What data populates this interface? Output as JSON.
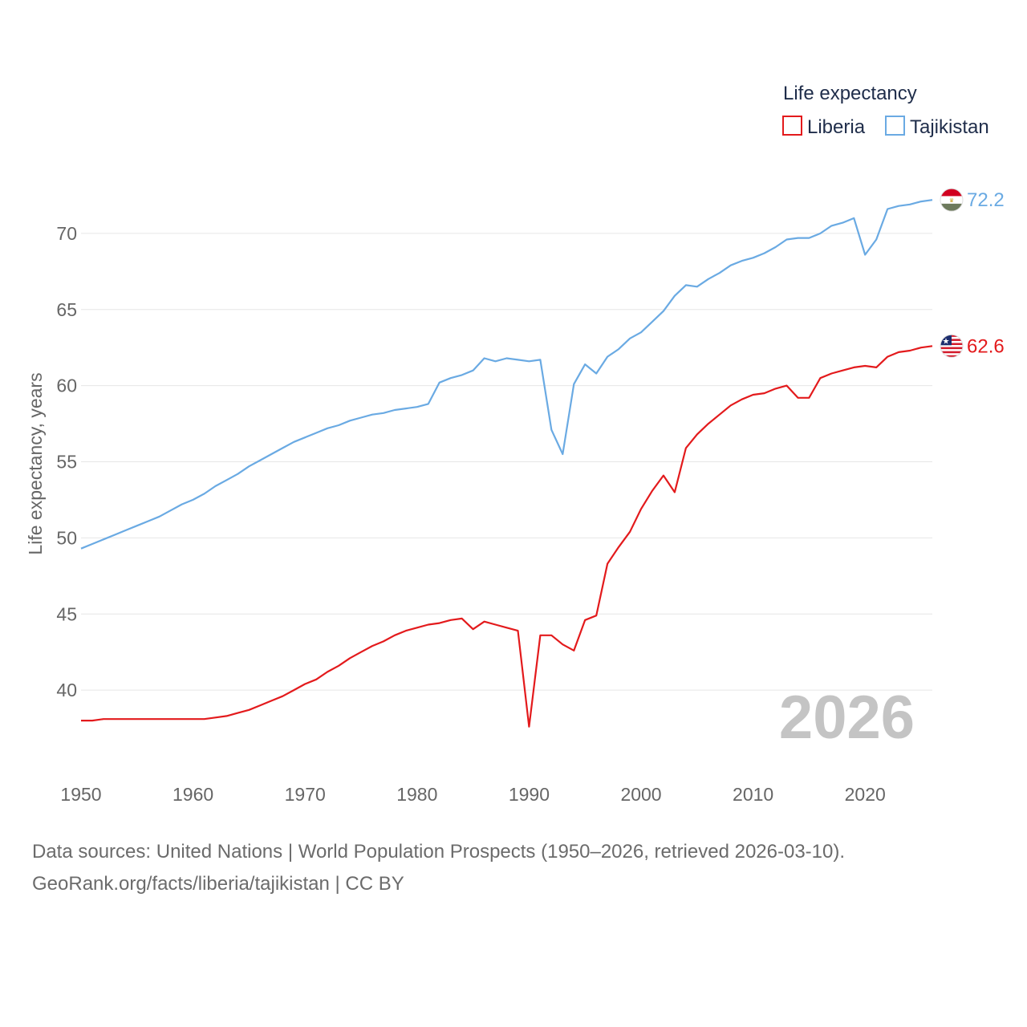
{
  "chart_data": {
    "type": "line",
    "legend_title": "Life expectancy",
    "ylabel": "Life expectancy, years",
    "xlabel": "",
    "year_watermark": "2026",
    "xlim": [
      1950,
      2026
    ],
    "ylim": [
      35,
      74
    ],
    "x_ticks": [
      1950,
      1960,
      1970,
      1980,
      1990,
      2000,
      2010,
      2020
    ],
    "y_ticks": [
      40,
      45,
      50,
      55,
      60,
      65,
      70
    ],
    "legend_position": "top-right",
    "x": [
      1950,
      1951,
      1952,
      1953,
      1954,
      1955,
      1956,
      1957,
      1958,
      1959,
      1960,
      1961,
      1962,
      1963,
      1964,
      1965,
      1966,
      1967,
      1968,
      1969,
      1970,
      1971,
      1972,
      1973,
      1974,
      1975,
      1976,
      1977,
      1978,
      1979,
      1980,
      1981,
      1982,
      1983,
      1984,
      1985,
      1986,
      1987,
      1988,
      1989,
      1990,
      1991,
      1992,
      1993,
      1994,
      1995,
      1996,
      1997,
      1998,
      1999,
      2000,
      2001,
      2002,
      2003,
      2004,
      2005,
      2006,
      2007,
      2008,
      2009,
      2010,
      2011,
      2012,
      2013,
      2014,
      2015,
      2016,
      2017,
      2018,
      2019,
      2020,
      2021,
      2022,
      2023,
      2024,
      2025,
      2026
    ],
    "series": [
      {
        "name": "Liberia",
        "color": "#e31a1c",
        "end_label": "62.6",
        "flag": "liberia-flag",
        "values": [
          38.0,
          38.0,
          38.1,
          38.1,
          38.1,
          38.1,
          38.1,
          38.1,
          38.1,
          38.1,
          38.1,
          38.1,
          38.2,
          38.3,
          38.5,
          38.7,
          39.0,
          39.3,
          39.6,
          40.0,
          40.4,
          40.7,
          41.2,
          41.6,
          42.1,
          42.5,
          42.9,
          43.2,
          43.6,
          43.9,
          44.1,
          44.3,
          44.4,
          44.6,
          44.7,
          44.0,
          44.5,
          44.3,
          44.1,
          43.9,
          37.6,
          43.6,
          43.6,
          43.0,
          42.6,
          44.6,
          44.9,
          48.3,
          49.4,
          50.4,
          51.9,
          53.1,
          54.1,
          53.0,
          55.9,
          56.8,
          57.5,
          58.1,
          58.7,
          59.1,
          59.4,
          59.5,
          59.8,
          60.0,
          59.2,
          59.2,
          60.5,
          60.8,
          61.0,
          61.2,
          61.3,
          61.2,
          61.9,
          62.2,
          62.3,
          62.5,
          62.6
        ]
      },
      {
        "name": "Tajikistan",
        "color": "#6aaae3",
        "end_label": "72.2",
        "flag": "tajikistan-flag",
        "values": [
          49.3,
          49.6,
          49.9,
          50.2,
          50.5,
          50.8,
          51.1,
          51.4,
          51.8,
          52.2,
          52.5,
          52.9,
          53.4,
          53.8,
          54.2,
          54.7,
          55.1,
          55.5,
          55.9,
          56.3,
          56.6,
          56.9,
          57.2,
          57.4,
          57.7,
          57.9,
          58.1,
          58.2,
          58.4,
          58.5,
          58.6,
          58.8,
          60.2,
          60.5,
          60.7,
          61.0,
          61.8,
          61.6,
          61.8,
          61.7,
          61.6,
          61.7,
          57.1,
          55.5,
          60.1,
          61.4,
          60.8,
          61.9,
          62.4,
          63.1,
          63.5,
          64.2,
          64.9,
          65.9,
          66.6,
          66.5,
          67.0,
          67.4,
          67.9,
          68.2,
          68.4,
          68.7,
          69.1,
          69.6,
          69.7,
          69.7,
          70.0,
          70.5,
          70.7,
          71.0,
          68.6,
          69.6,
          71.6,
          71.8,
          71.9,
          72.1,
          72.2
        ]
      }
    ]
  },
  "source_line_1": "Data sources: United Nations | World Population Prospects (1950–2026, retrieved 2026-03-10).",
  "source_line_2": "GeoRank.org/facts/liberia/tajikistan | CC BY"
}
